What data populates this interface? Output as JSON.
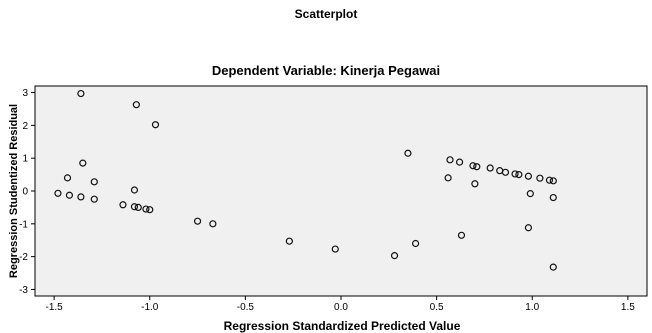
{
  "chart_data": {
    "type": "scatter",
    "title": "Scatterplot",
    "subtitle": "Dependent Variable: Kinerja Pegawai",
    "xlabel": "Regression Standardized Predicted Value",
    "ylabel": "Regression Studentized Residual",
    "xlim": [
      -1.6,
      1.6
    ],
    "ylim": [
      -3.2,
      3.2
    ],
    "xticks": [
      "-1.5",
      "-1.0",
      "-0.5",
      "0.0",
      "0.5",
      "1.0",
      "1.5"
    ],
    "xtick_values": [
      -1.5,
      -1.0,
      -0.5,
      0.0,
      0.5,
      1.0,
      1.5
    ],
    "yticks": [
      "3",
      "2",
      "1",
      "0",
      "-1",
      "-2",
      "-3"
    ],
    "ytick_values": [
      3,
      2,
      1,
      0,
      -1,
      -2,
      -3
    ],
    "grid": false,
    "marker": "hollow circle",
    "points": [
      {
        "x": -1.36,
        "y": 2.97
      },
      {
        "x": -1.07,
        "y": 2.63
      },
      {
        "x": -0.97,
        "y": 2.02
      },
      {
        "x": -1.35,
        "y": 0.85
      },
      {
        "x": -1.43,
        "y": 0.4
      },
      {
        "x": -1.29,
        "y": 0.28
      },
      {
        "x": -1.08,
        "y": 0.03
      },
      {
        "x": -1.48,
        "y": -0.07
      },
      {
        "x": -1.42,
        "y": -0.13
      },
      {
        "x": -1.36,
        "y": -0.18
      },
      {
        "x": -1.29,
        "y": -0.25
      },
      {
        "x": -1.14,
        "y": -0.42
      },
      {
        "x": -1.08,
        "y": -0.48
      },
      {
        "x": -1.06,
        "y": -0.5
      },
      {
        "x": -1.02,
        "y": -0.55
      },
      {
        "x": -1.0,
        "y": -0.57
      },
      {
        "x": -0.75,
        "y": -0.92
      },
      {
        "x": -0.67,
        "y": -1.0
      },
      {
        "x": -0.27,
        "y": -1.53
      },
      {
        "x": -0.03,
        "y": -1.77
      },
      {
        "x": 0.28,
        "y": -1.97
      },
      {
        "x": 0.39,
        "y": -1.6
      },
      {
        "x": 0.35,
        "y": 1.15
      },
      {
        "x": 0.57,
        "y": 0.95
      },
      {
        "x": 0.62,
        "y": 0.88
      },
      {
        "x": 0.56,
        "y": 0.4
      },
      {
        "x": 0.7,
        "y": 0.22
      },
      {
        "x": 0.69,
        "y": 0.77
      },
      {
        "x": 0.71,
        "y": 0.74
      },
      {
        "x": 0.78,
        "y": 0.7
      },
      {
        "x": 0.83,
        "y": 0.62
      },
      {
        "x": 0.86,
        "y": 0.57
      },
      {
        "x": 0.91,
        "y": 0.52
      },
      {
        "x": 0.93,
        "y": 0.5
      },
      {
        "x": 0.98,
        "y": 0.45
      },
      {
        "x": 1.04,
        "y": 0.39
      },
      {
        "x": 1.09,
        "y": 0.33
      },
      {
        "x": 1.11,
        "y": 0.31
      },
      {
        "x": 0.99,
        "y": -0.08
      },
      {
        "x": 1.11,
        "y": -0.2
      },
      {
        "x": 0.63,
        "y": -1.35
      },
      {
        "x": 0.98,
        "y": -1.12
      },
      {
        "x": 1.11,
        "y": -2.32
      }
    ]
  }
}
